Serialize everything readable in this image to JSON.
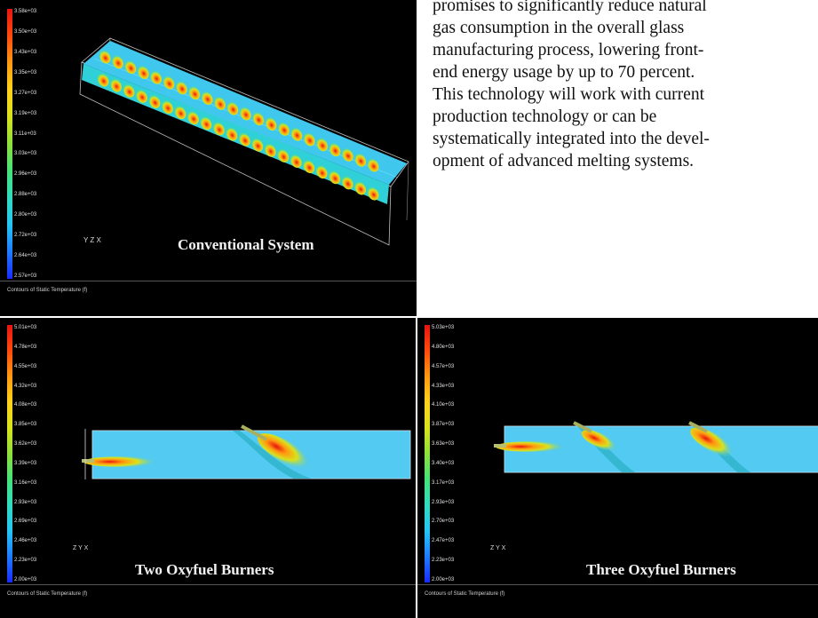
{
  "article": {
    "lines": [
      "promises to significantly reduce natural",
      "gas consumption in the overall glass",
      "manufacturing process, lowering front-",
      "end energy usage by up to 70 percent.",
      "This technology will work with current",
      "production technology or can be",
      "systematically integrated into the devel-",
      "opment of advanced melting systems."
    ]
  },
  "panels": {
    "conventional": {
      "title": "Conventional System",
      "caption": "Contours of Static Temperature (f)",
      "axis_label": "Y Z X",
      "colorbar_ticks": [
        "3.58e+03",
        "3.50e+03",
        "3.43e+03",
        "3.35e+03",
        "3.27e+03",
        "3.19e+03",
        "3.11e+03",
        "3.03e+03",
        "2.96e+03",
        "2.88e+03",
        "2.80e+03",
        "2.72e+03",
        "2.64e+03",
        "2.57e+03"
      ]
    },
    "two_oxyfuel": {
      "title": "Two Oxyfuel Burners",
      "caption": "Contours of Static Temperature (f)",
      "axis_label": "Z Y X",
      "colorbar_ticks": [
        "5.01e+03",
        "4.78e+03",
        "4.55e+03",
        "4.32e+03",
        "4.08e+03",
        "3.85e+03",
        "3.62e+03",
        "3.39e+03",
        "3.16e+03",
        "2.93e+03",
        "2.69e+03",
        "2.46e+03",
        "2.23e+03",
        "2.00e+03"
      ]
    },
    "three_oxyfuel": {
      "title": "Three Oxyfuel Burners",
      "caption": "Contours of Static Temperature (f)",
      "axis_label": "Z Y X",
      "colorbar_ticks": [
        "5.03e+03",
        "4.80e+03",
        "4.57e+03",
        "4.33e+03",
        "4.10e+03",
        "3.87e+03",
        "3.63e+03",
        "3.40e+03",
        "3.17e+03",
        "2.93e+03",
        "2.70e+03",
        "2.47e+03",
        "2.23e+03",
        "2.00e+03"
      ]
    }
  },
  "colors": {
    "colormap": [
      "#1a2bff",
      "#1e7cff",
      "#23c6f5",
      "#2fdcc0",
      "#45e27a",
      "#8de03a",
      "#d9e21c",
      "#ffd21a",
      "#ff9a10",
      "#ff4a0c",
      "#e8140e"
    ],
    "furnace_fill": "#3fc7ee"
  }
}
